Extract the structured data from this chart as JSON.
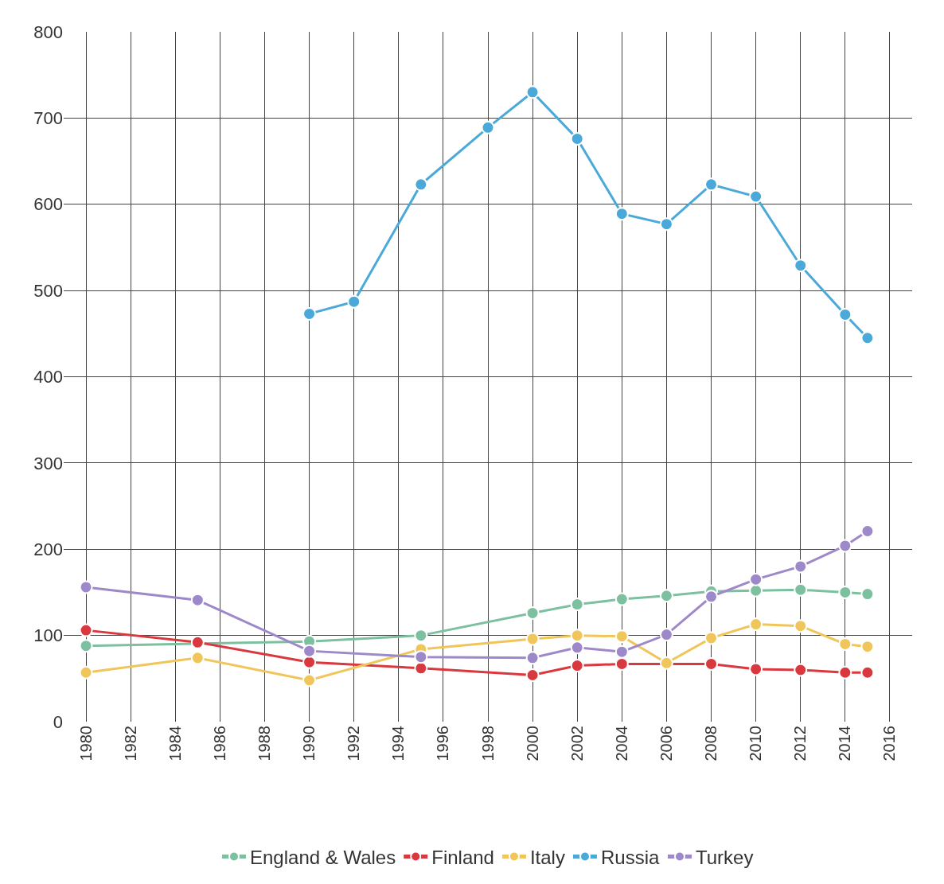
{
  "chart_data": {
    "type": "line",
    "x": [
      1980,
      1985,
      1990,
      1995,
      2000,
      2002,
      2004,
      2006,
      2008,
      2010,
      2012,
      2014,
      2015
    ],
    "series": [
      {
        "name": "England & Wales",
        "color": "#7dc0a0",
        "values": [
          88,
          null,
          93,
          100,
          126,
          136,
          142,
          146,
          151,
          152,
          153,
          150,
          148
        ]
      },
      {
        "name": "Finland",
        "color": "#d9383f",
        "values": [
          106,
          92,
          69,
          62,
          54,
          65,
          67,
          null,
          67,
          61,
          60,
          57,
          57
        ]
      },
      {
        "name": "Italy",
        "color": "#f0c65a",
        "values": [
          57,
          74,
          48,
          84,
          96,
          100,
          99,
          68,
          97,
          113,
          111,
          90,
          87
        ]
      },
      {
        "name": "Russia",
        "color": "#4aa9d9",
        "x": [
          1990,
          1992,
          1995,
          1998,
          2000,
          2002,
          2004,
          2006,
          2008,
          2010,
          2012,
          2014,
          2015
        ],
        "values": [
          473,
          487,
          623,
          689,
          730,
          676,
          589,
          577,
          623,
          609,
          529,
          472,
          445
        ]
      },
      {
        "name": "Turkey",
        "color": "#9d88c9",
        "values": [
          156,
          141,
          82,
          75,
          74,
          86,
          81,
          101,
          145,
          165,
          180,
          204,
          221
        ]
      }
    ],
    "xlim": [
      1979,
      2017
    ],
    "xticks": [
      1980,
      1982,
      1984,
      1986,
      1988,
      1990,
      1992,
      1994,
      1996,
      1998,
      2000,
      2002,
      2004,
      2006,
      2008,
      2010,
      2012,
      2014,
      2016
    ],
    "ylim": [
      0,
      800
    ],
    "yticks": [
      0,
      100,
      200,
      300,
      400,
      500,
      600,
      700,
      800
    ],
    "grid": true,
    "legend": "bottom",
    "marker": "circle",
    "line_style": "solid"
  }
}
